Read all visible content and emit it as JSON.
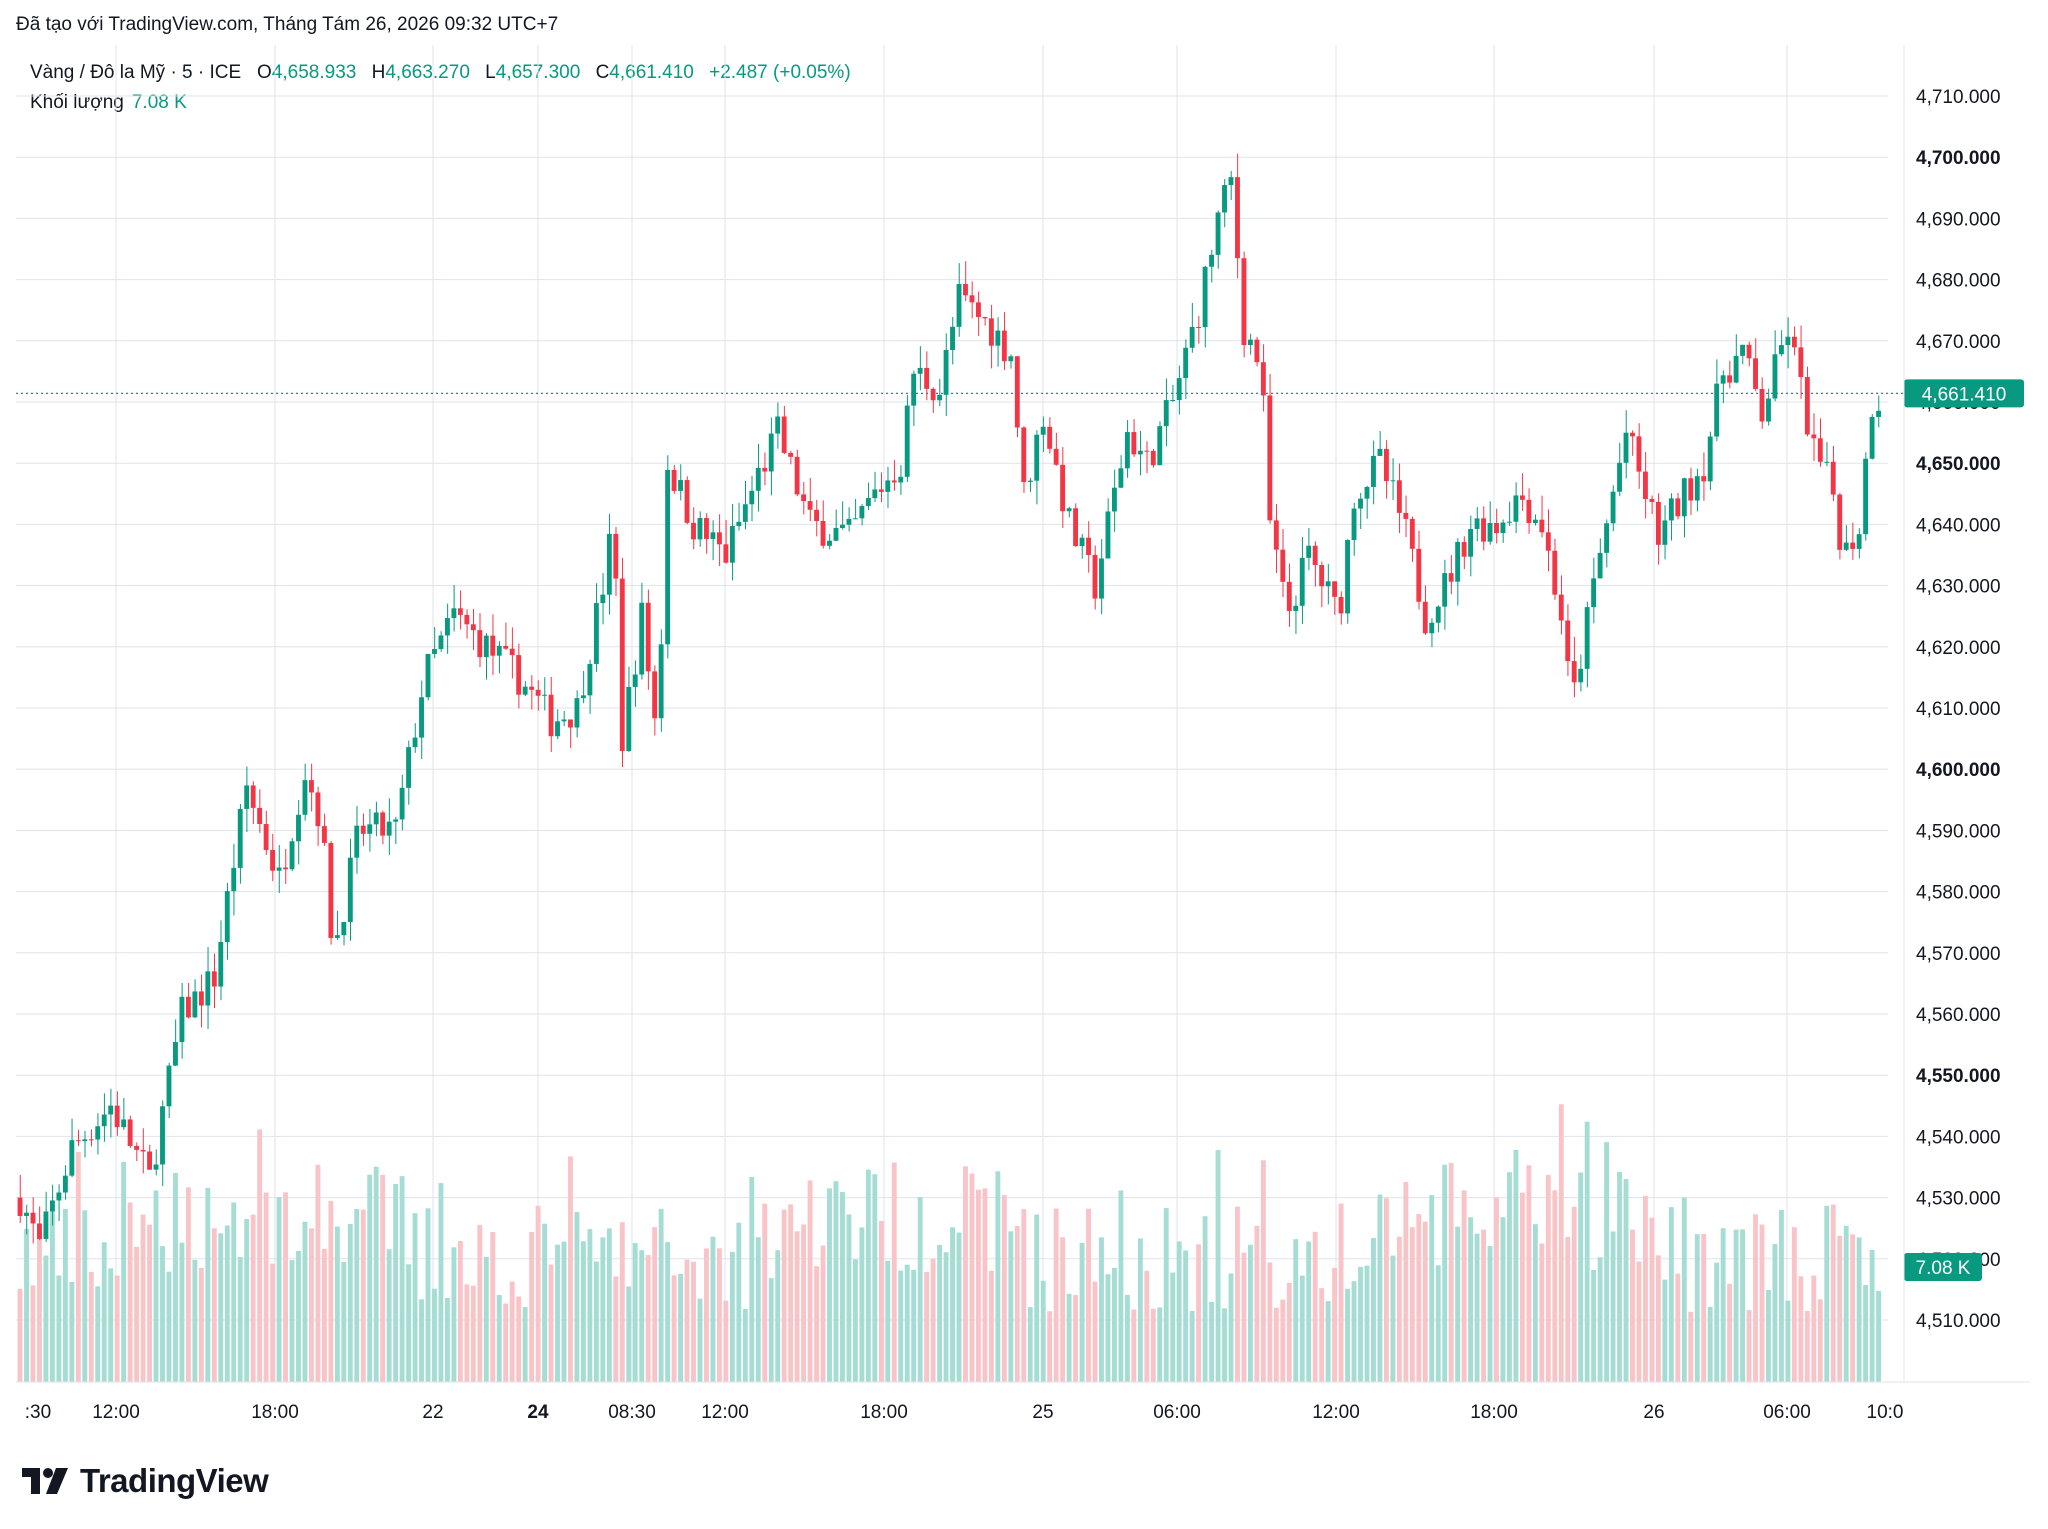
{
  "header": {
    "created_with": "Đã tạo với TradingView.com, Tháng Tám 26, 2026 09:32 UTC+7"
  },
  "legend": {
    "symbol": "Vàng / Đô la Mỹ · 5 · ICE",
    "open_label": "O",
    "open": "4,658.933",
    "high_label": "H",
    "high": "4,663.270",
    "low_label": "L",
    "low": "4,657.300",
    "close_label": "C",
    "close": "4,661.410",
    "change": "+2.487 (+0.05%)",
    "volume_label": "Khối lượng",
    "volume_value": "7.08 K"
  },
  "colors": {
    "up": "#089981",
    "down": "#f23645",
    "up_volume": "#a5ddd5",
    "down_volume": "#f9c4c8",
    "grid": "#e0e3eb",
    "text": "#131722"
  },
  "footer": {
    "brand": "TradingView",
    "logo_icon": "tradingview-logo-icon"
  },
  "chart_data": {
    "type": "candlestick",
    "timeframe_minutes": 5,
    "price_axis": {
      "range": [
        4500,
        4720
      ],
      "ticks": [
        "4,510.000",
        "4,520.000",
        "4,530.000",
        "4,540.000",
        "4,550.000",
        "4,560.000",
        "4,570.000",
        "4,580.000",
        "4,590.000",
        "4,600.000",
        "4,610.000",
        "4,620.000",
        "4,630.000",
        "4,640.000",
        "4,650.000",
        "4,660.000",
        "4,670.000",
        "4,680.000",
        "4,690.000",
        "4,700.000",
        "4,710.000"
      ],
      "bold_ticks": [
        "4,550.000",
        "4,600.000",
        "4,650.000",
        "4,700.000"
      ],
      "last_price_label": "4,661.410",
      "last_price": 4661.41,
      "volume_label": "7.08 K"
    },
    "time_axis": {
      "labels": [
        ":30",
        "12:00",
        "18:00",
        "22",
        "24",
        "08:30",
        "12:00",
        "18:00",
        "25",
        "06:00",
        "12:00",
        "18:00",
        "26",
        "06:00",
        "10:0"
      ],
      "bold_labels": [
        "24"
      ]
    },
    "price_path": [
      [
        0,
        4530
      ],
      [
        15,
        4522
      ],
      [
        40,
        4538
      ],
      [
        70,
        4545
      ],
      [
        100,
        4533
      ],
      [
        125,
        4560
      ],
      [
        150,
        4566
      ],
      [
        165,
        4585
      ],
      [
        175,
        4597
      ],
      [
        200,
        4582
      ],
      [
        220,
        4600
      ],
      [
        232,
        4592
      ],
      [
        242,
        4570
      ],
      [
        262,
        4590
      ],
      [
        290,
        4590
      ],
      [
        312,
        4615
      ],
      [
        335,
        4625
      ],
      [
        360,
        4620
      ],
      [
        385,
        4615
      ],
      [
        410,
        4608
      ],
      [
        430,
        4610
      ],
      [
        450,
        4630
      ],
      [
        458,
        4640
      ],
      [
        465,
        4605
      ],
      [
        480,
        4625
      ],
      [
        492,
        4605
      ],
      [
        500,
        4650
      ],
      [
        520,
        4640
      ],
      [
        545,
        4635
      ],
      [
        570,
        4648
      ],
      [
        585,
        4655
      ],
      [
        610,
        4640
      ],
      [
        640,
        4638
      ],
      [
        660,
        4645
      ],
      [
        680,
        4650
      ],
      [
        690,
        4665
      ],
      [
        710,
        4662
      ],
      [
        725,
        4677
      ],
      [
        750,
        4672
      ],
      [
        765,
        4668
      ],
      [
        775,
        4645
      ],
      [
        790,
        4658
      ],
      [
        810,
        4640
      ],
      [
        830,
        4630
      ],
      [
        840,
        4640
      ],
      [
        855,
        4655
      ],
      [
        870,
        4650
      ],
      [
        890,
        4660
      ],
      [
        910,
        4675
      ],
      [
        925,
        4690
      ],
      [
        935,
        4696
      ],
      [
        945,
        4672
      ],
      [
        958,
        4666
      ],
      [
        965,
        4640
      ],
      [
        978,
        4625
      ],
      [
        995,
        4635
      ],
      [
        1018,
        4625
      ],
      [
        1030,
        4645
      ],
      [
        1050,
        4650
      ],
      [
        1068,
        4640
      ],
      [
        1085,
        4625
      ],
      [
        1100,
        4630
      ],
      [
        1120,
        4640
      ],
      [
        1140,
        4640
      ],
      [
        1158,
        4645
      ],
      [
        1175,
        4640
      ],
      [
        1190,
        4625
      ],
      [
        1198,
        4610
      ],
      [
        1215,
        4630
      ],
      [
        1230,
        4645
      ],
      [
        1240,
        4655
      ],
      [
        1265,
        4638
      ],
      [
        1285,
        4645
      ],
      [
        1300,
        4650
      ],
      [
        1315,
        4665
      ],
      [
        1330,
        4668
      ],
      [
        1345,
        4658
      ],
      [
        1365,
        4672
      ],
      [
        1385,
        4652
      ],
      [
        1400,
        4645
      ],
      [
        1408,
        4635
      ],
      [
        1420,
        4640
      ],
      [
        1430,
        4660
      ],
      [
        1440,
        4661
      ]
    ],
    "summary": {
      "high": 4696.0,
      "low": 4518.0,
      "open_first": 4530.0,
      "close_last": 4661.41
    }
  }
}
